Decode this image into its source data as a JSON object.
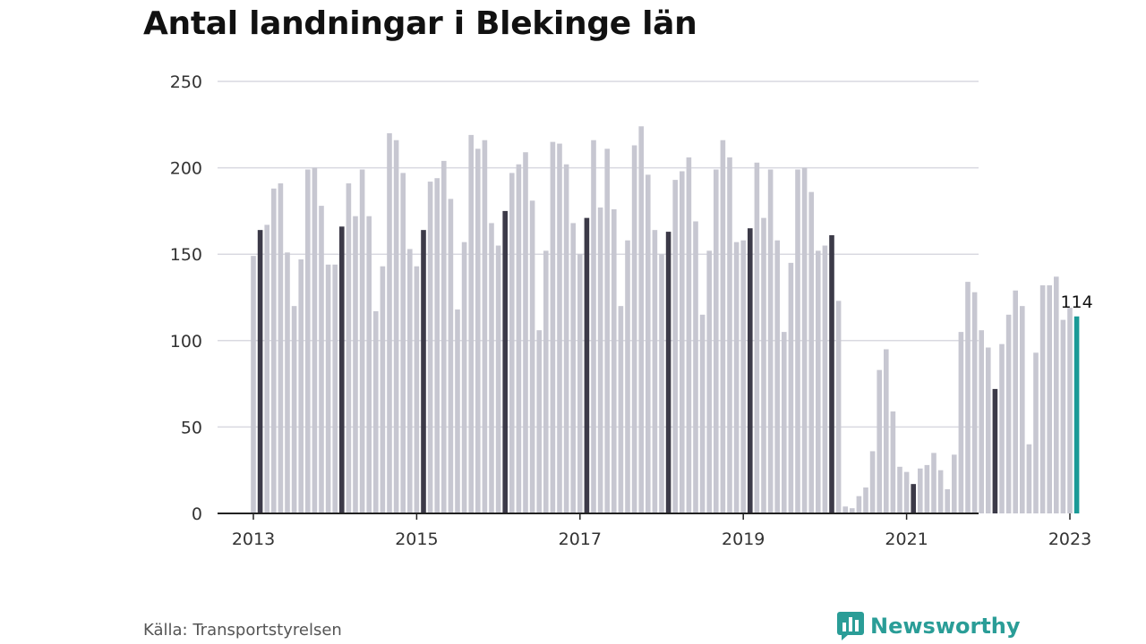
{
  "title": "Antal landningar i Blekinge län",
  "source": "Källa: Transportstyrelsen",
  "brand": "Newsworthy",
  "colors": {
    "bar": "#c7c7d1",
    "january": "#3c3a48",
    "latest": "#1a9a97",
    "grid": "#d9d9e0",
    "axis": "#222222",
    "brand": "#2a9d97"
  },
  "chart_data": {
    "type": "bar",
    "title": "Antal landningar i Blekinge län",
    "xlabel": "",
    "ylabel": "",
    "ylim": [
      0,
      250
    ],
    "y_ticks": [
      "0",
      "50",
      "100",
      "150",
      "200",
      "250"
    ],
    "x_ticks": [
      "2013",
      "2015",
      "2017",
      "2019",
      "2021",
      "2023"
    ],
    "grid": true,
    "start_month": "2013-01",
    "end_month": "2023-02",
    "values": [
      149,
      164,
      167,
      188,
      191,
      151,
      120,
      147,
      199,
      200,
      178,
      144,
      144,
      166,
      191,
      172,
      199,
      172,
      117,
      143,
      220,
      216,
      197,
      153,
      143,
      164,
      192,
      194,
      204,
      182,
      118,
      157,
      219,
      211,
      216,
      168,
      155,
      175,
      197,
      202,
      209,
      181,
      106,
      152,
      215,
      214,
      202,
      168,
      150,
      171,
      216,
      177,
      211,
      176,
      120,
      158,
      213,
      224,
      196,
      164,
      150,
      163,
      193,
      198,
      206,
      169,
      115,
      152,
      199,
      216,
      206,
      157,
      158,
      165,
      203,
      171,
      199,
      158,
      105,
      145,
      199,
      200,
      186,
      152,
      155,
      161,
      123,
      4,
      3,
      10,
      15,
      36,
      83,
      95,
      59,
      27,
      24,
      17,
      26,
      28,
      35,
      25,
      14,
      34,
      105,
      134,
      128,
      106,
      96,
      72,
      98,
      115,
      129,
      120,
      40,
      93,
      132,
      132,
      137,
      112,
      119,
      114
    ],
    "highlight_label": "114"
  }
}
